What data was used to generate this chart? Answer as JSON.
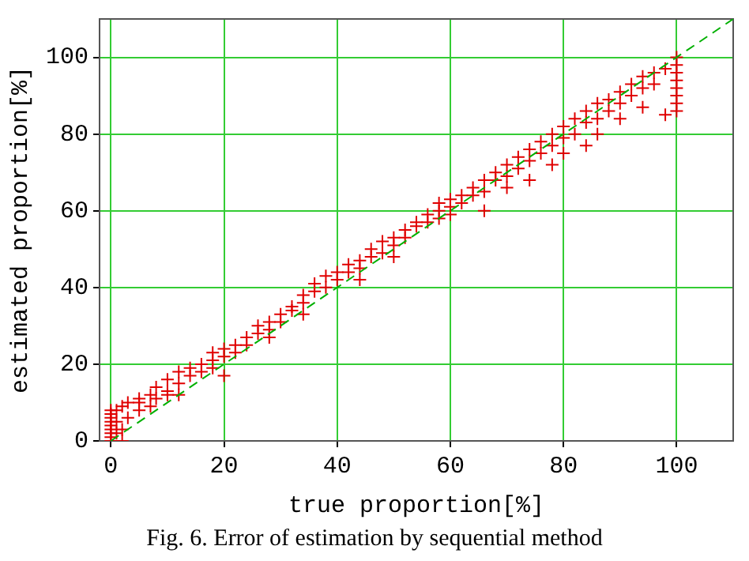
{
  "chart_data": {
    "type": "scatter",
    "xlabel": "true proportion[%]",
    "ylabel": "estimated proportion[%]",
    "annotations": [
      "Fig. 6. Error of estimation by sequential method"
    ],
    "xlim": [
      -2,
      110
    ],
    "ylim": [
      0,
      110
    ],
    "xticks": [
      0,
      20,
      40,
      60,
      80,
      100
    ],
    "yticks": [
      0,
      20,
      40,
      60,
      80,
      100
    ],
    "grid": true,
    "series": [
      {
        "type": "line",
        "color": "#00b000",
        "marker": "none",
        "line_style": "dashed",
        "x": [
          0,
          110
        ],
        "values": [
          0,
          110
        ]
      },
      {
        "color": "#e00000",
        "marker": "cross",
        "x": [
          0,
          0,
          0,
          0,
          0,
          0,
          0,
          0,
          0,
          1,
          1,
          1,
          2,
          2,
          2,
          3,
          3,
          5,
          5,
          5,
          7,
          7,
          8,
          8,
          10,
          10,
          10,
          12,
          12,
          12,
          14,
          14,
          16,
          16,
          18,
          18,
          18,
          20,
          20,
          20,
          22,
          22,
          24,
          24,
          26,
          26,
          28,
          28,
          28,
          30,
          30,
          32,
          32,
          34,
          34,
          34,
          36,
          36,
          38,
          38,
          40,
          40,
          42,
          42,
          44,
          44,
          44,
          46,
          46,
          48,
          48,
          50,
          50,
          50,
          52,
          52,
          54,
          54,
          56,
          56,
          58,
          58,
          58,
          60,
          60,
          60,
          62,
          62,
          64,
          64,
          66,
          66,
          66,
          68,
          68,
          70,
          70,
          70,
          72,
          72,
          74,
          74,
          74,
          76,
          76,
          78,
          78,
          78,
          80,
          80,
          80,
          82,
          82,
          84,
          84,
          84,
          86,
          86,
          86,
          88,
          88,
          90,
          90,
          90,
          92,
          92,
          94,
          94,
          94,
          96,
          96,
          98,
          98,
          100,
          100,
          100,
          100,
          100,
          100,
          100,
          100
        ],
        "values": [
          0,
          1,
          2,
          3,
          4,
          5,
          6,
          7,
          8,
          2,
          5,
          8,
          0,
          3,
          9,
          6,
          10,
          10,
          8,
          11,
          9,
          12,
          14,
          11,
          16,
          13,
          12,
          18,
          15,
          12,
          19,
          17,
          20,
          18,
          23,
          21,
          19,
          24,
          22,
          17,
          25,
          23,
          27,
          25,
          30,
          28,
          31,
          29,
          27,
          33,
          31,
          35,
          34,
          38,
          36,
          33,
          41,
          39,
          43,
          40,
          44,
          42,
          46,
          44,
          47,
          45,
          42,
          50,
          48,
          52,
          49,
          53,
          51,
          48,
          55,
          53,
          57,
          56,
          59,
          57,
          62,
          60,
          58,
          63,
          61,
          59,
          64,
          62,
          66,
          64,
          68,
          65,
          60,
          70,
          68,
          72,
          69,
          66,
          74,
          71,
          76,
          73,
          68,
          78,
          75,
          80,
          77,
          72,
          82,
          79,
          75,
          84,
          80,
          86,
          83,
          77,
          88,
          84,
          80,
          89,
          86,
          91,
          88,
          84,
          93,
          90,
          95,
          92,
          87,
          96,
          93,
          97,
          85,
          86,
          88,
          90,
          92,
          94,
          96,
          98,
          100
        ]
      }
    ]
  }
}
